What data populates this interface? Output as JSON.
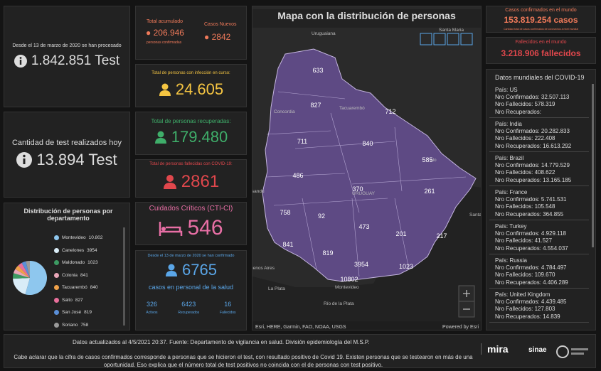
{
  "left": {
    "total_tests": {
      "caption": "Desde el 13 de marzo de 2020 se han procesado",
      "value": "1.842.851 Test"
    },
    "tests_today": {
      "caption": "Cantidad de test realizados hoy",
      "value": "13.894 Test"
    },
    "distribution": {
      "title": "Distribución de personas por departamento",
      "items": [
        {
          "name": "Montevideo",
          "value": 10802,
          "label": "10.802",
          "color": "#8ec7ee"
        },
        {
          "name": "Canelones",
          "value": 3954,
          "color": "#d9ecf7"
        },
        {
          "name": "Maldonado",
          "value": 1023,
          "color": "#3c9a62"
        },
        {
          "name": "Colonia",
          "value": 841,
          "color": "#e9a6b8"
        },
        {
          "name": "Tacuarembó",
          "value": 840,
          "color": "#f0a24a"
        },
        {
          "name": "Salto",
          "value": 827,
          "color": "#e86f9b"
        },
        {
          "name": "San José",
          "value": 819,
          "color": "#5a8fd8"
        },
        {
          "name": "Soriano",
          "value": 758,
          "color": "#9a9a9a"
        }
      ]
    }
  },
  "cases": {
    "total": {
      "title": "Total acumulado",
      "value": "206.946",
      "caption": "personas confirmadas"
    },
    "new": {
      "title": "Casos Nuevos",
      "value": "2842"
    },
    "active": {
      "title": "Total de personas con infección en curso:",
      "value": "24.605"
    },
    "recovered": {
      "title": "Total de personas recuperadas:",
      "value": "179.480"
    },
    "deceased": {
      "title": "Total de personas fallecidas con COVID-19:",
      "value": "2861"
    },
    "critical": {
      "title": "Cuidados Críticos (CTI-CI)",
      "value": "546"
    },
    "health_staff": {
      "caption": "Desde el 13 de marzo de 2020 se han confirmado",
      "value": "6765",
      "subtitle": "casos en personal de la salud",
      "breakdown": [
        {
          "value": "326",
          "label": "Activos"
        },
        {
          "value": "6423",
          "label": "Recuperados"
        },
        {
          "value": "16",
          "label": "Fallecidos"
        }
      ]
    }
  },
  "map": {
    "title": "Mapa con la distribución de personas",
    "places": [
      "Uruguaiana",
      "Santa Maria",
      "Concordia",
      "Tacuarembó",
      "aysandú",
      "URUGUAY",
      "uenos Aires",
      "La Plata",
      "Montevideo",
      "Río de la Plata",
      "Santa Vitória do Palmar",
      "alo"
    ],
    "departments": [
      633,
      827,
      712,
      711,
      840,
      585,
      486,
      370,
      261,
      758,
      92,
      473,
      201,
      217,
      841,
      819,
      3954,
      1023,
      10802
    ],
    "attribution": "Esri, HERE, Garmin, FAO, NOAA, USGS",
    "powered": "Powered by Esri"
  },
  "world": {
    "confirmed": {
      "title": "Casos confirmados en el mundo",
      "value": "153.819.254 casos",
      "caption": "Cantidad total de casos confirmados de coronavirus a nivel mundial"
    },
    "deaths": {
      "title": "Fallecidos en el mundo",
      "value": "3.218.906 fallecidos"
    },
    "list": {
      "title": "Datos mundiales del COVID-19",
      "countries": [
        [
          "País: US",
          "Nro Confirmados: 32.507.113",
          "Nro Fallecidos: 578.319",
          "Nro Recuperados:"
        ],
        [
          "País: India",
          "Nro Confirmados: 20.282.833",
          "Nro Fallecidos: 222.408",
          "Nro Recuperados: 16.613.292"
        ],
        [
          "País: Brazil",
          "Nro Confirmados: 14.779.529",
          "Nro Fallecidos: 408.622",
          "Nro Recuperados: 13.165.185"
        ],
        [
          "País: France",
          "Nro Confirmados: 5.741.531",
          "Nro Fallecidos: 105.548",
          "Nro Recuperados: 364.855"
        ],
        [
          "País: Turkey",
          "Nro Confirmados: 4.929.118",
          "Nro Fallecidos: 41.527",
          "Nro Recuperados: 4.554.037"
        ],
        [
          "País: Russia",
          "Nro Confirmados: 4.784.497",
          "Nro Fallecidos: 109.670",
          "Nro Recuperados: 4.406.289"
        ],
        [
          "País: United Kingdom",
          "Nro Confirmados: 4.439.485",
          "Nro Fallecidos: 127.803",
          "Nro Recuperados: 14.839"
        ]
      ]
    }
  },
  "footer": {
    "updated": "Datos actualizados al 4/5/2021 20:37. Fuente: Departamento de vigilancia en salud. División epidemiología del M.S.P.",
    "note": "Cabe aclarar que la cifra de casos confirmados corresponde a personas que se hicieron el test, con resultado positivo de Covid 19. Existen personas que se testearon en más de una oportunidad. Eso explica que el número total de test positivos no coincida con el de personas con test positivo.",
    "logos": [
      "mira",
      "sinae"
    ]
  }
}
